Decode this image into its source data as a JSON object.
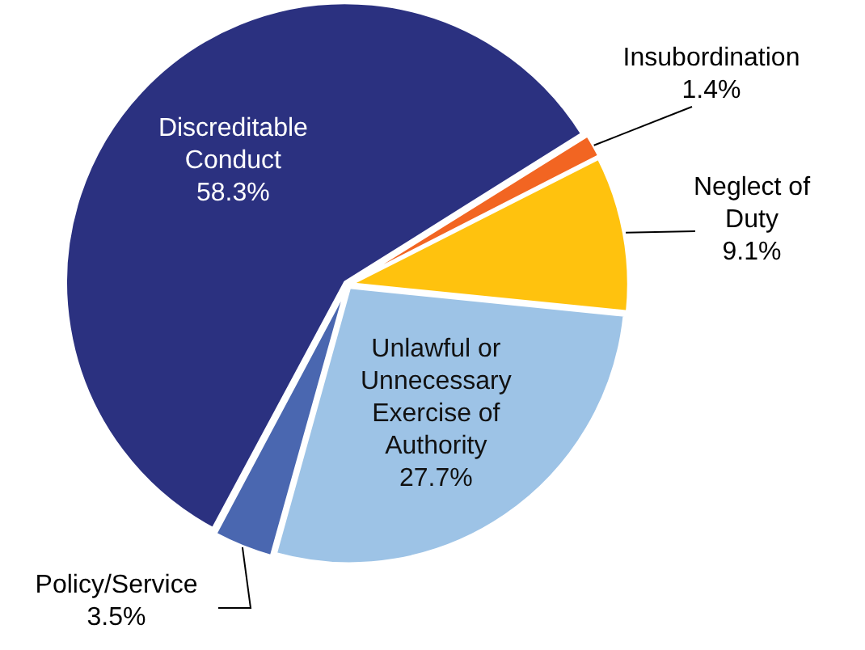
{
  "chart_data": {
    "type": "pie",
    "categories": [
      "Insubordination",
      "Neglect of Duty",
      "Unlawful or Unnecessary Exercise of Authority",
      "Policy/Service",
      "Discreditable Conduct"
    ],
    "values": [
      1.4,
      9.1,
      27.7,
      3.5,
      58.3
    ],
    "colors": [
      "#f26522",
      "#ffc20e",
      "#9dc3e6",
      "#4a67b0",
      "#2b3180"
    ],
    "value_labels": [
      "1.4%",
      "9.1%",
      "27.7%",
      "3.5%",
      "58.3%"
    ],
    "legend": false
  }
}
